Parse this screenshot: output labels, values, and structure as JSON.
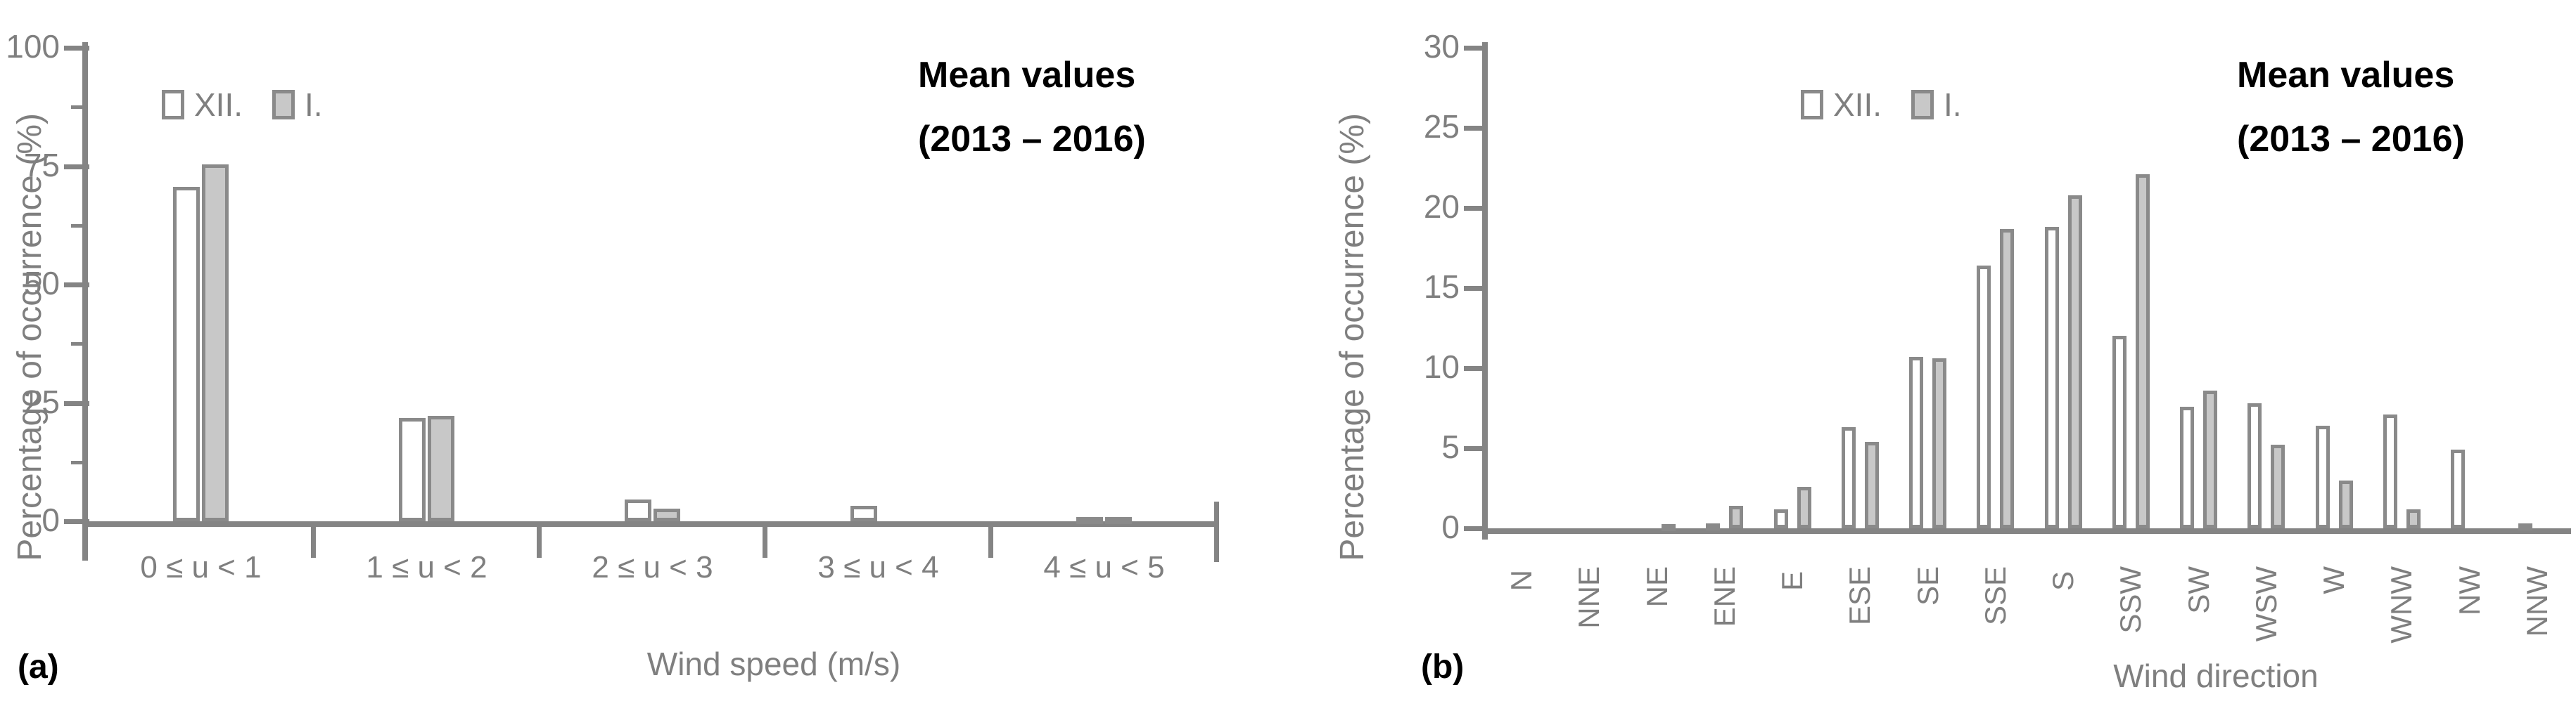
{
  "colors": {
    "axis": "#848484",
    "bar_border": "#8A8A8A",
    "series_XII_fill": "#FFFFFF",
    "series_I_fill": "#C8C8C8",
    "gray_text": "#7F7F7F",
    "title_text": "#000000"
  },
  "chart_data": [
    {
      "id": "a",
      "type": "bar",
      "panel_label": "(a)",
      "title_line1": "Mean values",
      "title_line2": "(2013 – 2016)",
      "ylabel": "Percentage of occurrence (%)",
      "xlabel": "Wind speed (m/s)",
      "ylim": [
        0,
        100
      ],
      "y_ticks": [
        0,
        25,
        50,
        75,
        100
      ],
      "y_minor_ticks": [
        12.5,
        37.5,
        62.5,
        87.5
      ],
      "grid": "off",
      "legend_position": "top-left-inside",
      "categories": [
        "0 ≤ u < 1",
        "1 ≤ u < 2",
        "2 ≤ u < 3",
        "3 ≤ u < 4",
        "4 ≤ u < 5"
      ],
      "legend": [
        {
          "label": "XII.",
          "fill": "#FFFFFF"
        },
        {
          "label": "I.",
          "fill": "#C8C8C8"
        }
      ],
      "series": [
        {
          "name": "XII.",
          "fill": "#FFFFFF",
          "values": [
            70.6,
            21.8,
            4.6,
            3.2,
            0.3
          ]
        },
        {
          "name": "I.",
          "fill": "#C8C8C8",
          "values": [
            75.4,
            22.3,
            2.7,
            0,
            0.3
          ]
        }
      ]
    },
    {
      "id": "b",
      "type": "bar",
      "panel_label": "(b)",
      "title_line1": "Mean values",
      "title_line2": "(2013 – 2016)",
      "ylabel": "Percentage of occurrence (%)",
      "xlabel": "Wind direction",
      "ylim": [
        0,
        30
      ],
      "y_ticks": [
        0,
        5,
        10,
        15,
        20,
        25,
        30
      ],
      "y_minor_ticks": [],
      "grid": "off",
      "legend_position": "top-left-inside",
      "categories": [
        "N",
        "NNE",
        "NE",
        "ENE",
        "E",
        "ESE",
        "SE",
        "SSE",
        "S",
        "SSW",
        "SW",
        "WSW",
        "W",
        "WNW",
        "NW",
        "NNW"
      ],
      "legend": [
        {
          "label": "XII.",
          "fill": "#FFFFFF"
        },
        {
          "label": "I.",
          "fill": "#C8C8C8"
        }
      ],
      "series": [
        {
          "name": "XII.",
          "fill": "#FFFFFF",
          "values": [
            0,
            0,
            0,
            0.3,
            1.2,
            6.3,
            10.7,
            16.4,
            18.8,
            12,
            7.6,
            7.8,
            6.4,
            7.1,
            4.9,
            0.3
          ]
        },
        {
          "name": "I.",
          "fill": "#C8C8C8",
          "values": [
            0,
            0,
            0.2,
            1.4,
            2.6,
            5.4,
            10.6,
            18.7,
            20.8,
            22.1,
            8.6,
            5.2,
            3,
            1.2,
            0,
            0
          ]
        }
      ]
    }
  ]
}
